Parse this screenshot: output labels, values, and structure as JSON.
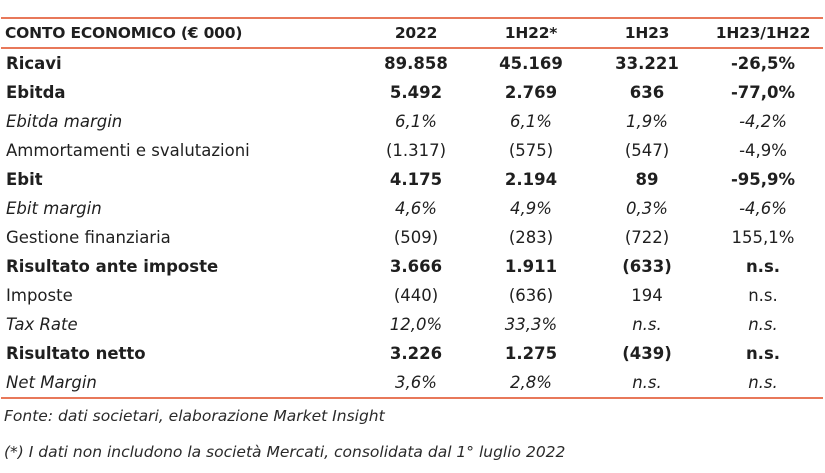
{
  "table": {
    "headers": [
      "CONTO ECONOMICO (€ 000)",
      "2022",
      "1H22*",
      "1H23",
      "1H23/1H22"
    ],
    "rows": [
      {
        "label": "Ricavi",
        "style": "bold",
        "values": [
          "89.858",
          "45.169",
          "33.221",
          "-26,5%"
        ]
      },
      {
        "label": "Ebitda",
        "style": "bold",
        "values": [
          "5.492",
          "2.769",
          "636",
          "-77,0%"
        ]
      },
      {
        "label": "Ebitda margin",
        "style": "italic",
        "values": [
          "6,1%",
          "6,1%",
          "1,9%",
          "-4,2%"
        ]
      },
      {
        "label": "Ammortamenti e svalutazioni",
        "style": "plain",
        "values": [
          "(1.317)",
          "(575)",
          "(547)",
          "-4,9%"
        ]
      },
      {
        "label": "Ebit",
        "style": "bold",
        "values": [
          "4.175",
          "2.194",
          "89",
          "-95,9%"
        ]
      },
      {
        "label": "Ebit margin",
        "style": "italic",
        "values": [
          "4,6%",
          "4,9%",
          "0,3%",
          "-4,6%"
        ]
      },
      {
        "label": "Gestione finanziaria",
        "style": "plain",
        "values": [
          "(509)",
          "(283)",
          "(722)",
          "155,1%"
        ]
      },
      {
        "label": "Risultato ante imposte",
        "style": "bold",
        "values": [
          "3.666",
          "1.911",
          "(633)",
          "n.s."
        ]
      },
      {
        "label": "Imposte",
        "style": "plain",
        "values": [
          "(440)",
          "(636)",
          "194",
          "n.s."
        ]
      },
      {
        "label": "Tax Rate",
        "style": "italic",
        "values": [
          "12,0%",
          "33,3%",
          "n.s.",
          "n.s."
        ]
      },
      {
        "label": "Risultato netto",
        "style": "bold",
        "values": [
          "3.226",
          "1.275",
          "(439)",
          "n.s."
        ]
      },
      {
        "label": "Net Margin",
        "style": "italic",
        "values": [
          "3,6%",
          "2,8%",
          "n.s.",
          "n.s."
        ]
      }
    ]
  },
  "notes": {
    "source": "Fonte: dati societari, elaborazione Market Insight",
    "footnote": "(*) I dati non includono la società Mercati, consolidata dal 1° luglio 2022"
  },
  "colors": {
    "rule": "#e8785a",
    "text": "#1f1f1f"
  }
}
